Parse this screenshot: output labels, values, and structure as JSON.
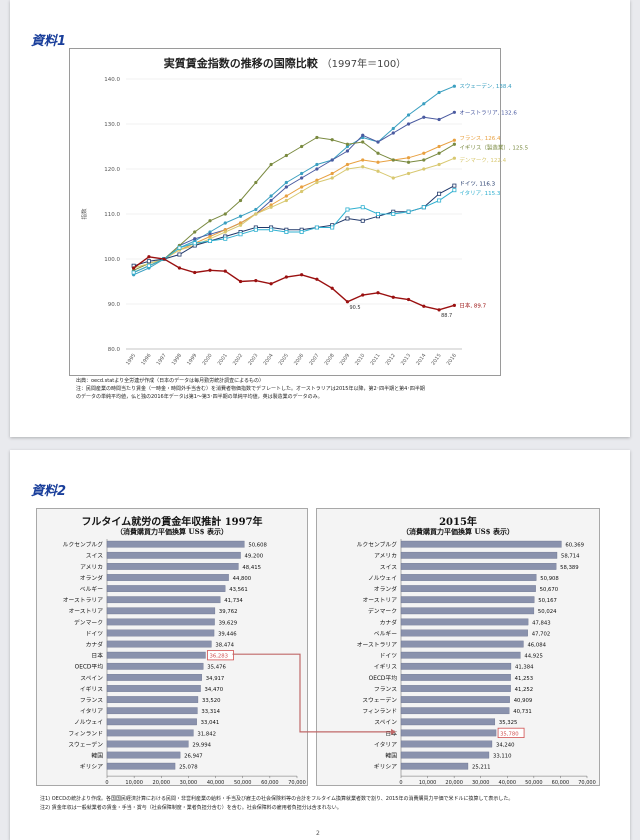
{
  "doc1": {
    "label": "資料1",
    "notes": [
      "出典：oecd.statより全労連が作成（日本のデータは毎月勤労統計調査によるもの）",
      "注：民間産業の時間当たり賃金（一時金・時間外手当含む）を消費者物価指数でデフレートした。オーストラリアは2015年以降，第2･四半期と第4･四半期",
      "のデータの単純平均値，仏と独の2016年データは第1～第3･四半期の単純平均値，英は製造業のデータのみ。"
    ]
  },
  "doc2": {
    "label": "資料2",
    "footnotes": [
      "注1) OECDの統計より作成。各国国民経済計算における民間・非営利産業の給料・手当及び雇主の社会保険料等の合計をフルタイム換算就業者数で割り、2015年の消費購買力平価で米ドルに換算して表示した。",
      "注2) 賃金年収は一般就業者の賃金・手当・賞与（社会保障制度・業者負担分含む）を含む。社会保障料の雇用者負担分は含まれない。"
    ]
  },
  "page_number": "2",
  "colors": {
    "sweden": "#3a9fc0",
    "australia": "#4a5aa0",
    "france": "#e8a040",
    "uk": "#7a8a40",
    "denmark": "#d8c870",
    "uk_dk_line": "#e0b060",
    "germany": "#20386a",
    "italy": "#30b0d0",
    "japan": "#9a1010",
    "ref": "#707070",
    "bar": "#8a92ad",
    "highlight": "#d05050",
    "arrow": "#c06868"
  },
  "chart_data": [
    {
      "type": "line",
      "title": "実質賃金指数の推移の国際比較",
      "subtitle": "（1997年＝100）",
      "ylabel": "指数",
      "ylim": [
        80,
        140
      ],
      "yticks": [
        "80.0",
        "90.0",
        "100.0",
        "110.0",
        "120.0",
        "130.0",
        "140.0"
      ],
      "x": [
        "1995",
        "1996",
        "1997",
        "1998",
        "1999",
        "2000",
        "2001",
        "2002",
        "2003",
        "2004",
        "2005",
        "2006",
        "2007",
        "2008",
        "2009",
        "2010",
        "2011",
        "2012",
        "2013",
        "2014",
        "2015",
        "2016"
      ],
      "series": [
        {
          "key": "sweden",
          "label": "スウェーデン, 138.4",
          "values": [
            96.5,
            98.0,
            100,
            102.5,
            104.0,
            106.0,
            108.0,
            109.5,
            111.0,
            114.0,
            117.0,
            119.0,
            121.0,
            122.0,
            125.0,
            127.0,
            126.0,
            129.0,
            132.0,
            134.5,
            137.0,
            138.4
          ]
        },
        {
          "key": "australia",
          "label": "オーストラリア, 132.6",
          "values": [
            97.0,
            98.5,
            100,
            103.0,
            104.5,
            105.5,
            106.5,
            108.0,
            110.0,
            113.0,
            116.0,
            118.0,
            120.0,
            122.0,
            124.0,
            127.5,
            126.0,
            128.0,
            130.0,
            131.5,
            131.0,
            132.6
          ]
        },
        {
          "key": "france",
          "label": "フランス, 126.4",
          "values": [
            97.0,
            98.5,
            100,
            102.0,
            103.5,
            105.0,
            106.5,
            108.0,
            110.0,
            112.0,
            114.0,
            116.0,
            117.5,
            119.0,
            121.0,
            122.0,
            121.5,
            122.0,
            122.5,
            123.5,
            125.0,
            126.4
          ]
        },
        {
          "key": "uk",
          "label": "イギリス（製造業）, 125.5",
          "values": [
            97.5,
            99.0,
            100,
            103.0,
            106.0,
            108.5,
            110.0,
            113.0,
            117.0,
            121.0,
            123.0,
            125.0,
            127.0,
            126.5,
            125.5,
            126.0,
            123.5,
            122.0,
            121.5,
            122.0,
            123.5,
            125.5
          ]
        },
        {
          "key": "denmark",
          "label": "デンマーク, 122.4",
          "values": [
            98.0,
            99.0,
            100,
            102.0,
            103.0,
            104.5,
            106.0,
            107.5,
            110.0,
            111.5,
            113.0,
            115.0,
            117.0,
            118.0,
            120.0,
            120.5,
            119.5,
            118.0,
            119.0,
            120.0,
            121.0,
            122.4
          ]
        },
        {
          "key": "germany",
          "label": "ドイツ, 116.3",
          "values": [
            98.5,
            99.5,
            100,
            101.0,
            103.0,
            104.0,
            105.0,
            106.0,
            107.0,
            107.0,
            106.5,
            106.5,
            107.0,
            107.5,
            109.0,
            108.5,
            109.5,
            110.5,
            110.5,
            111.5,
            114.5,
            116.3
          ]
        },
        {
          "key": "italy",
          "label": "イタリア, 115.3",
          "values": [
            97.0,
            98.5,
            100,
            102.5,
            103.5,
            104.0,
            104.5,
            105.5,
            106.5,
            106.5,
            106.0,
            106.0,
            107.0,
            107.0,
            111.0,
            111.5,
            110.0,
            110.0,
            110.5,
            111.5,
            113.0,
            115.3
          ]
        },
        {
          "key": "japan",
          "label": "日本, 89.7",
          "values": [
            98.0,
            100.5,
            100,
            98.0,
            97.0,
            97.5,
            97.3,
            95.0,
            95.2,
            94.5,
            96.0,
            96.5,
            95.5,
            93.5,
            90.5,
            92.0,
            92.5,
            91.5,
            91.0,
            89.5,
            88.7,
            89.7
          ]
        }
      ],
      "annotations": [
        {
          "label": "90.5",
          "x": "2009",
          "y": 90.5
        },
        {
          "label": "88.7",
          "x": "2015",
          "y": 88.7
        }
      ]
    },
    {
      "type": "bar",
      "title": "フルタイム就労の賃金年収推計 1997年",
      "subtitle": "（消費購買力平価換算 US$ 表示）",
      "xlim": [
        0,
        70000
      ],
      "xticks": [
        "0",
        "10,000",
        "20,000",
        "30,000",
        "40,000",
        "50,000",
        "60,000",
        "70,000"
      ],
      "highlight": "日本",
      "categories": [
        "ルクセンブルグ",
        "スイス",
        "アメリカ",
        "オランダ",
        "ベルギー",
        "オーストラリア",
        "オーストリア",
        "デンマーク",
        "ドイツ",
        "カナダ",
        "日本",
        "OECD平均",
        "スペイン",
        "イギリス",
        "フランス",
        "イタリア",
        "ノルウェイ",
        "フィンランド",
        "スウェーデン",
        "韓国",
        "ギリシア"
      ],
      "values": [
        50608,
        49200,
        48415,
        44800,
        43561,
        41734,
        39762,
        39629,
        39446,
        38474,
        36283,
        35476,
        34917,
        34470,
        33520,
        33314,
        33041,
        31842,
        29994,
        26947,
        25078
      ],
      "value_labels": [
        "50,608",
        "49,200",
        "48,415",
        "44,800",
        "43,561",
        "41,734",
        "39,762",
        "39,629",
        "39,446",
        "38,474",
        "36,283",
        "35,476",
        "34,917",
        "34,470",
        "33,520",
        "33,314",
        "33,041",
        "31,842",
        "29,994",
        "26,947",
        "25,078"
      ]
    },
    {
      "type": "bar",
      "title": "2015年",
      "subtitle": "（消費購買力平価換算 US$ 表示）",
      "xlim": [
        0,
        70000
      ],
      "xticks": [
        "0",
        "10,000",
        "20,000",
        "30,000",
        "40,000",
        "50,000",
        "60,000",
        "70,000"
      ],
      "highlight": "日本",
      "categories": [
        "ルクセンブルグ",
        "アメリカ",
        "スイス",
        "ノルウェイ",
        "オランダ",
        "オーストリア",
        "デンマーク",
        "カナダ",
        "ベルギー",
        "オーストラリア",
        "ドイツ",
        "イギリス",
        "OECD平均",
        "フランス",
        "スウェーデン",
        "フィンランド",
        "スペイン",
        "日本",
        "イタリア",
        "韓国",
        "ギリシア"
      ],
      "values": [
        60369,
        58714,
        58389,
        50908,
        50670,
        50167,
        50024,
        47843,
        47702,
        46084,
        44925,
        41384,
        41253,
        41252,
        40909,
        40731,
        35325,
        35780,
        34240,
        33110,
        25211
      ],
      "value_labels": [
        "60,369",
        "58,714",
        "58,389",
        "50,908",
        "50,670",
        "50,167",
        "50,024",
        "47,843",
        "47,702",
        "46,084",
        "44,925",
        "41,384",
        "41,253",
        "41,252",
        "40,909",
        "40,731",
        "35,325",
        "35,780",
        "34,240",
        "33,110",
        "25,211"
      ]
    }
  ]
}
